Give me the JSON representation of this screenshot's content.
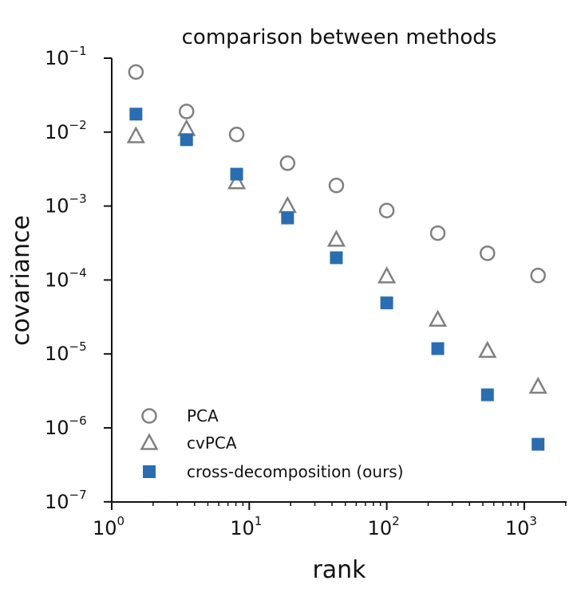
{
  "chart_data": {
    "type": "scatter",
    "title": "comparison between methods",
    "xlabel": "rank",
    "ylabel": "covariance",
    "xscale": "log",
    "yscale": "log",
    "xlim": [
      1,
      2000
    ],
    "ylim": [
      1e-07,
      0.1
    ],
    "x_ticks": [
      {
        "value": 1,
        "base": "10",
        "exp": "0"
      },
      {
        "value": 10,
        "base": "10",
        "exp": "1"
      },
      {
        "value": 100,
        "base": "10",
        "exp": "2"
      },
      {
        "value": 1000,
        "base": "10",
        "exp": "3"
      }
    ],
    "y_ticks": [
      {
        "value": 0.1,
        "base": "10",
        "exp": "−1"
      },
      {
        "value": 0.01,
        "base": "10",
        "exp": "−2"
      },
      {
        "value": 0.001,
        "base": "10",
        "exp": "−3"
      },
      {
        "value": 0.0001,
        "base": "10",
        "exp": "−4"
      },
      {
        "value": 1e-05,
        "base": "10",
        "exp": "−5"
      },
      {
        "value": 1e-06,
        "base": "10",
        "exp": "−6"
      },
      {
        "value": 1e-07,
        "base": "10",
        "exp": "−7"
      }
    ],
    "grid": false,
    "legend_position": "bottom-left",
    "series": [
      {
        "name": "PCA",
        "marker": "circle-open",
        "color": "#808080",
        "x": [
          1.5,
          3.5,
          8.1,
          19,
          43,
          100,
          235,
          540,
          1260
        ],
        "y": [
          0.065,
          0.019,
          0.0093,
          0.0038,
          0.0019,
          0.00087,
          0.00043,
          0.00023,
          0.000115
        ]
      },
      {
        "name": "cvPCA",
        "marker": "triangle-open",
        "color": "#808080",
        "x": [
          1.5,
          3.5,
          8.1,
          19,
          43,
          100,
          235,
          540,
          1260
        ],
        "y": [
          0.0088,
          0.011,
          0.0021,
          0.001,
          0.00035,
          0.000112,
          2.9e-05,
          1.1e-05,
          3.6e-06
        ]
      },
      {
        "name": "cross-decomposition (ours)",
        "marker": "square-filled",
        "color": "#2a6db0",
        "x": [
          1.5,
          3.5,
          8.1,
          19,
          43,
          100,
          235,
          540,
          1260
        ],
        "y": [
          0.0175,
          0.0079,
          0.0027,
          0.00069,
          0.0002,
          4.9e-05,
          1.18e-05,
          2.8e-06,
          6e-07
        ]
      }
    ]
  }
}
